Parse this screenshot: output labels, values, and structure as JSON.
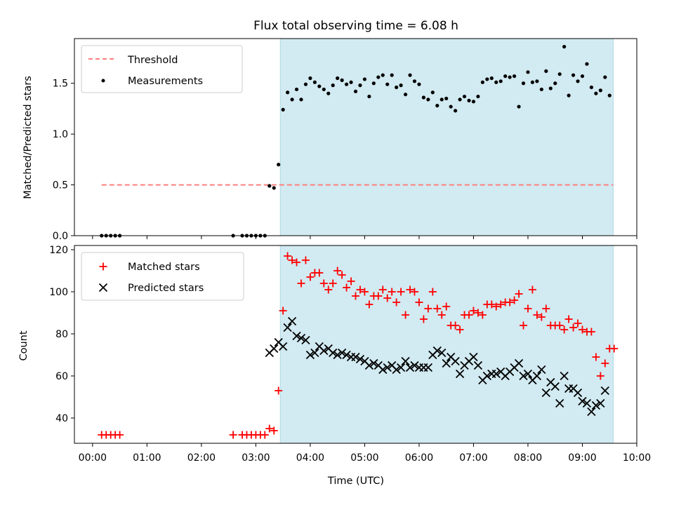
{
  "colors": {
    "shade": "#add8e6",
    "threshold": "#ff7f7f",
    "measurements": "#000000",
    "matched": "#ff0000",
    "predicted": "#000000"
  },
  "chart_data": [
    {
      "type": "scatter",
      "title": "Flux total observing time = 6.08 h",
      "ylabel": "Matched/Predicted stars",
      "xlabel": "",
      "xlim": [
        "23:40",
        "10:00"
      ],
      "ylim": [
        0,
        1.94
      ],
      "yticks": [
        0.0,
        0.5,
        1.0,
        1.5
      ],
      "ytick_labels": [
        "0.0",
        "0.5",
        "1.0",
        "1.5"
      ],
      "shaded_span": [
        "03:27",
        "09:34"
      ],
      "legend_position": "upper left",
      "threshold": {
        "name": "Threshold",
        "value": 0.5,
        "x": [
          "00:10",
          "09:34"
        ]
      },
      "series": [
        {
          "name": "Measurements",
          "points": [
            [
              "00:10",
              0.0
            ],
            [
              "00:15",
              0.0
            ],
            [
              "00:20",
              0.0
            ],
            [
              "00:25",
              0.0
            ],
            [
              "00:30",
              0.0
            ],
            [
              "02:35",
              0.0
            ],
            [
              "02:45",
              0.0
            ],
            [
              "02:50",
              0.0
            ],
            [
              "02:55",
              0.0
            ],
            [
              "03:00",
              0.0
            ],
            [
              "03:05",
              0.0
            ],
            [
              "03:10",
              0.0
            ],
            [
              "03:15",
              0.49
            ],
            [
              "03:20",
              0.47
            ],
            [
              "03:25",
              0.7
            ],
            [
              "03:30",
              1.24
            ],
            [
              "03:35",
              1.41
            ],
            [
              "03:40",
              1.34
            ],
            [
              "03:45",
              1.44
            ],
            [
              "03:50",
              1.34
            ],
            [
              "03:55",
              1.49
            ],
            [
              "04:00",
              1.55
            ],
            [
              "04:05",
              1.51
            ],
            [
              "04:10",
              1.47
            ],
            [
              "04:15",
              1.44
            ],
            [
              "04:20",
              1.4
            ],
            [
              "04:25",
              1.48
            ],
            [
              "04:30",
              1.55
            ],
            [
              "04:35",
              1.53
            ],
            [
              "04:40",
              1.49
            ],
            [
              "04:45",
              1.51
            ],
            [
              "04:50",
              1.42
            ],
            [
              "04:55",
              1.48
            ],
            [
              "05:00",
              1.54
            ],
            [
              "05:05",
              1.37
            ],
            [
              "05:10",
              1.5
            ],
            [
              "05:15",
              1.56
            ],
            [
              "05:20",
              1.58
            ],
            [
              "05:25",
              1.49
            ],
            [
              "05:30",
              1.58
            ],
            [
              "05:35",
              1.46
            ],
            [
              "05:40",
              1.48
            ],
            [
              "05:45",
              1.39
            ],
            [
              "05:50",
              1.58
            ],
            [
              "05:55",
              1.52
            ],
            [
              "06:00",
              1.49
            ],
            [
              "06:05",
              1.36
            ],
            [
              "06:10",
              1.34
            ],
            [
              "06:15",
              1.41
            ],
            [
              "06:20",
              1.28
            ],
            [
              "06:25",
              1.34
            ],
            [
              "06:30",
              1.35
            ],
            [
              "06:35",
              1.27
            ],
            [
              "06:40",
              1.23
            ],
            [
              "06:45",
              1.34
            ],
            [
              "06:50",
              1.37
            ],
            [
              "06:55",
              1.33
            ],
            [
              "07:00",
              1.32
            ],
            [
              "07:05",
              1.37
            ],
            [
              "07:10",
              1.51
            ],
            [
              "07:15",
              1.54
            ],
            [
              "07:20",
              1.55
            ],
            [
              "07:25",
              1.51
            ],
            [
              "07:30",
              1.52
            ],
            [
              "07:35",
              1.57
            ],
            [
              "07:40",
              1.56
            ],
            [
              "07:45",
              1.57
            ],
            [
              "07:50",
              1.27
            ],
            [
              "07:55",
              1.5
            ],
            [
              "08:00",
              1.61
            ],
            [
              "08:05",
              1.51
            ],
            [
              "08:10",
              1.52
            ],
            [
              "08:15",
              1.44
            ],
            [
              "08:20",
              1.62
            ],
            [
              "08:25",
              1.45
            ],
            [
              "08:30",
              1.5
            ],
            [
              "08:35",
              1.59
            ],
            [
              "08:40",
              1.86
            ],
            [
              "08:45",
              1.38
            ],
            [
              "08:50",
              1.58
            ],
            [
              "08:55",
              1.52
            ],
            [
              "09:00",
              1.57
            ],
            [
              "09:05",
              1.69
            ],
            [
              "09:10",
              1.46
            ],
            [
              "09:15",
              1.4
            ],
            [
              "09:20",
              1.43
            ],
            [
              "09:25",
              1.56
            ],
            [
              "09:30",
              1.38
            ]
          ]
        }
      ]
    },
    {
      "type": "scatter",
      "title": "",
      "ylabel": "Count",
      "xlabel": "Time (UTC)",
      "xlim": [
        "23:40",
        "10:00"
      ],
      "ylim": [
        28,
        122
      ],
      "yticks": [
        40,
        60,
        80,
        100,
        120
      ],
      "ytick_labels": [
        "40",
        "60",
        "80",
        "100",
        "120"
      ],
      "xticks": [
        "00:00",
        "01:00",
        "02:00",
        "03:00",
        "04:00",
        "05:00",
        "06:00",
        "07:00",
        "08:00",
        "09:00",
        "10:00"
      ],
      "xtick_labels": [
        "00:00",
        "01:00",
        "02:00",
        "03:00",
        "04:00",
        "05:00",
        "06:00",
        "07:00",
        "08:00",
        "09:00",
        "10:00"
      ],
      "shaded_span": [
        "03:27",
        "09:34"
      ],
      "legend_position": "upper left",
      "series": [
        {
          "name": "Matched stars",
          "marker": "plus",
          "points": [
            [
              "00:10",
              32
            ],
            [
              "00:15",
              32
            ],
            [
              "00:20",
              32
            ],
            [
              "00:25",
              32
            ],
            [
              "00:30",
              32
            ],
            [
              "02:35",
              32
            ],
            [
              "02:45",
              32
            ],
            [
              "02:50",
              32
            ],
            [
              "02:55",
              32
            ],
            [
              "03:00",
              32
            ],
            [
              "03:05",
              32
            ],
            [
              "03:10",
              32
            ],
            [
              "03:15",
              35
            ],
            [
              "03:20",
              34
            ],
            [
              "03:25",
              53
            ],
            [
              "03:30",
              91
            ],
            [
              "03:35",
              117
            ],
            [
              "03:40",
              115
            ],
            [
              "03:45",
              114
            ],
            [
              "03:50",
              104
            ],
            [
              "03:55",
              115
            ],
            [
              "04:00",
              107
            ],
            [
              "04:05",
              109
            ],
            [
              "04:10",
              109
            ],
            [
              "04:15",
              104
            ],
            [
              "04:20",
              101
            ],
            [
              "04:25",
              104
            ],
            [
              "04:30",
              110
            ],
            [
              "04:35",
              108
            ],
            [
              "04:40",
              102
            ],
            [
              "04:45",
              105
            ],
            [
              "04:50",
              98
            ],
            [
              "04:55",
              101
            ],
            [
              "05:00",
              100
            ],
            [
              "05:05",
              94
            ],
            [
              "05:10",
              98
            ],
            [
              "05:15",
              98
            ],
            [
              "05:20",
              101
            ],
            [
              "05:25",
              97
            ],
            [
              "05:30",
              100
            ],
            [
              "05:35",
              95
            ],
            [
              "05:40",
              100
            ],
            [
              "05:45",
              89
            ],
            [
              "05:50",
              101
            ],
            [
              "05:55",
              100
            ],
            [
              "06:00",
              95
            ],
            [
              "06:05",
              87
            ],
            [
              "06:10",
              92
            ],
            [
              "06:15",
              100
            ],
            [
              "06:20",
              92
            ],
            [
              "06:25",
              89
            ],
            [
              "06:30",
              93
            ],
            [
              "06:35",
              84
            ],
            [
              "06:40",
              84
            ],
            [
              "06:45",
              82
            ],
            [
              "06:50",
              89
            ],
            [
              "06:55",
              89
            ],
            [
              "07:00",
              91
            ],
            [
              "07:05",
              90
            ],
            [
              "07:10",
              89
            ],
            [
              "07:15",
              94
            ],
            [
              "07:20",
              94
            ],
            [
              "07:25",
              93
            ],
            [
              "07:30",
              94
            ],
            [
              "07:35",
              95
            ],
            [
              "07:40",
              95
            ],
            [
              "07:45",
              96
            ],
            [
              "07:50",
              99
            ],
            [
              "07:55",
              84
            ],
            [
              "08:00",
              92
            ],
            [
              "08:05",
              101
            ],
            [
              "08:10",
              89
            ],
            [
              "08:15",
              88
            ],
            [
              "08:20",
              92
            ],
            [
              "08:25",
              84
            ],
            [
              "08:30",
              84
            ],
            [
              "08:35",
              84
            ],
            [
              "08:40",
              82
            ],
            [
              "08:45",
              87
            ],
            [
              "08:50",
              83
            ],
            [
              "08:55",
              85
            ],
            [
              "09:00",
              82
            ],
            [
              "09:05",
              81
            ],
            [
              "09:10",
              81
            ],
            [
              "09:15",
              69
            ],
            [
              "09:20",
              60
            ],
            [
              "09:25",
              66
            ],
            [
              "09:30",
              73
            ],
            [
              "09:35",
              73
            ]
          ]
        },
        {
          "name": "Predicted stars",
          "marker": "x",
          "points": [
            [
              "03:15",
              71
            ],
            [
              "03:20",
              73
            ],
            [
              "03:25",
              76
            ],
            [
              "03:30",
              74
            ],
            [
              "03:35",
              83
            ],
            [
              "03:40",
              86
            ],
            [
              "03:45",
              79
            ],
            [
              "03:50",
              78
            ],
            [
              "03:55",
              77
            ],
            [
              "04:00",
              70
            ],
            [
              "04:05",
              71
            ],
            [
              "04:10",
              74
            ],
            [
              "04:15",
              72
            ],
            [
              "04:20",
              73
            ],
            [
              "04:25",
              71
            ],
            [
              "04:30",
              70
            ],
            [
              "04:35",
              71
            ],
            [
              "04:40",
              70
            ],
            [
              "04:45",
              69
            ],
            [
              "04:50",
              69
            ],
            [
              "04:55",
              68
            ],
            [
              "05:00",
              67
            ],
            [
              "05:05",
              65
            ],
            [
              "05:10",
              66
            ],
            [
              "05:15",
              65
            ],
            [
              "05:20",
              63
            ],
            [
              "05:25",
              64
            ],
            [
              "05:30",
              65
            ],
            [
              "05:35",
              63
            ],
            [
              "05:40",
              64
            ],
            [
              "05:45",
              67
            ],
            [
              "05:50",
              64
            ],
            [
              "05:55",
              65
            ],
            [
              "06:00",
              64
            ],
            [
              "06:05",
              64
            ],
            [
              "06:10",
              64
            ],
            [
              "06:15",
              70
            ],
            [
              "06:20",
              72
            ],
            [
              "06:25",
              71
            ],
            [
              "06:30",
              66
            ],
            [
              "06:35",
              69
            ],
            [
              "06:40",
              67
            ],
            [
              "06:45",
              61
            ],
            [
              "06:50",
              65
            ],
            [
              "06:55",
              67
            ],
            [
              "07:00",
              69
            ],
            [
              "07:05",
              65
            ],
            [
              "07:10",
              58
            ],
            [
              "07:15",
              60
            ],
            [
              "07:20",
              61
            ],
            [
              "07:25",
              61
            ],
            [
              "07:30",
              62
            ],
            [
              "07:35",
              60
            ],
            [
              "07:40",
              62
            ],
            [
              "07:45",
              64
            ],
            [
              "07:50",
              66
            ],
            [
              "07:55",
              60
            ],
            [
              "08:00",
              61
            ],
            [
              "08:05",
              58
            ],
            [
              "08:10",
              60
            ],
            [
              "08:15",
              63
            ],
            [
              "08:20",
              52
            ],
            [
              "08:25",
              57
            ],
            [
              "08:30",
              55
            ],
            [
              "08:35",
              47
            ],
            [
              "08:40",
              60
            ],
            [
              "08:45",
              54
            ],
            [
              "08:50",
              54
            ],
            [
              "08:55",
              52
            ],
            [
              "09:00",
              48
            ],
            [
              "09:05",
              47
            ],
            [
              "09:10",
              43
            ],
            [
              "09:15",
              46
            ],
            [
              "09:20",
              47
            ],
            [
              "09:25",
              53
            ]
          ]
        }
      ]
    }
  ]
}
